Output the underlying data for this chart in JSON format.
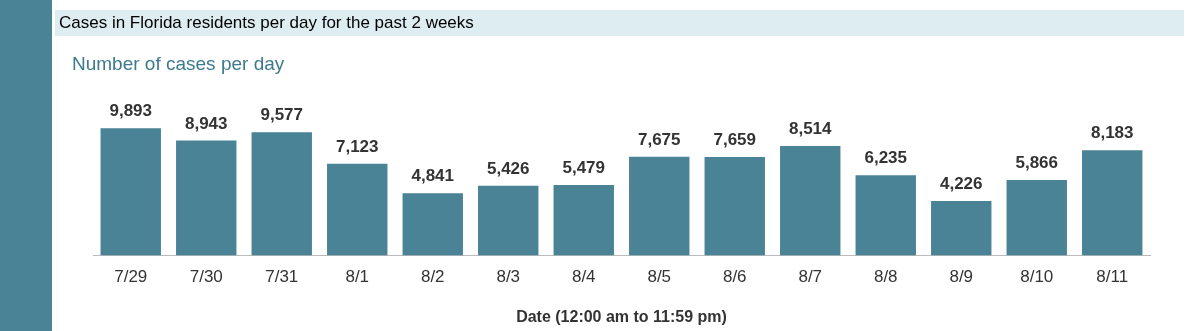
{
  "chart_data": {
    "type": "bar",
    "title": "Cases in Florida residents per day for the past 2 weeks",
    "subtitle": "Number of cases per day",
    "xlabel": "Date (12:00 am to 11:59 pm)",
    "categories": [
      "7/29",
      "7/30",
      "7/31",
      "8/1",
      "8/2",
      "8/3",
      "8/4",
      "8/5",
      "8/6",
      "8/7",
      "8/8",
      "8/9",
      "8/10",
      "8/11"
    ],
    "values": [
      9893,
      8943,
      9577,
      7123,
      4841,
      5426,
      5479,
      7675,
      7659,
      8514,
      6235,
      4226,
      5866,
      8183
    ],
    "value_labels": [
      "9,893",
      "8,943",
      "9,577",
      "7,123",
      "4,841",
      "5,426",
      "5,479",
      "7,675",
      "7,659",
      "8,514",
      "6,235",
      "4,226",
      "5,866",
      "8,183"
    ],
    "color": "#4a8296",
    "legend": false,
    "grid": false
  }
}
